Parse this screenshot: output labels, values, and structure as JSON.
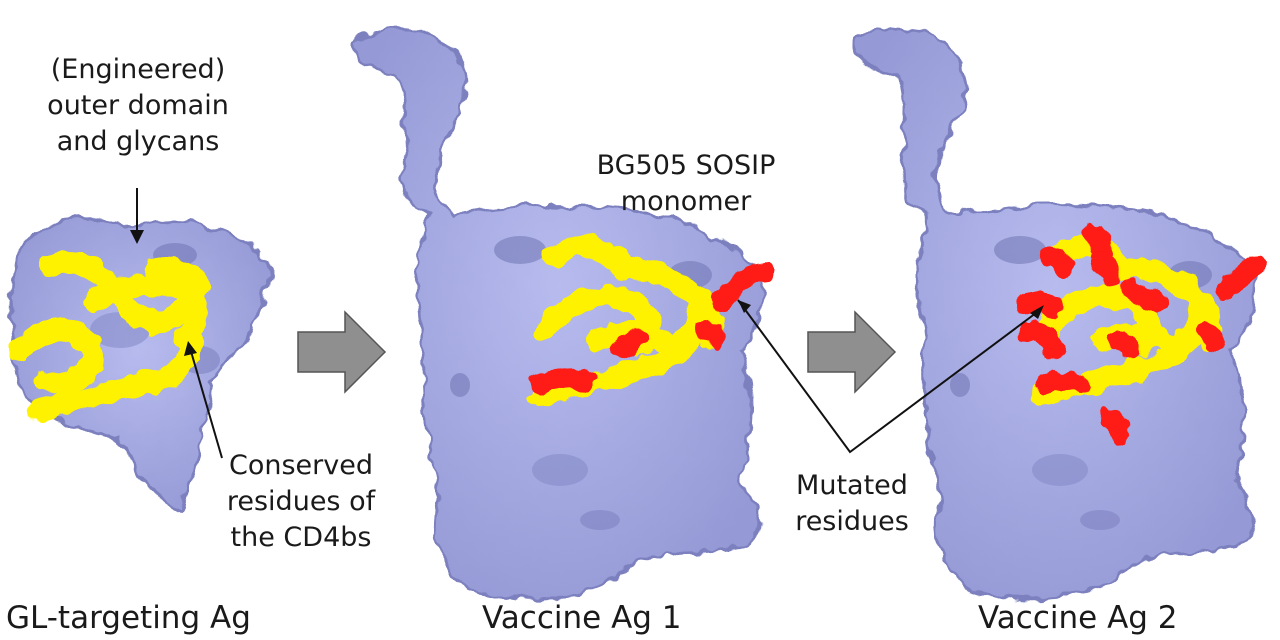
{
  "colors": {
    "protein": "#a9aee6",
    "protein_shadow": "#7b80be",
    "conserved": "#fff200",
    "mutated": "#ff1a12",
    "arrow": "#8e8e8e"
  },
  "panels": [
    {
      "caption": "GL-targeting Ag",
      "icon": "protein-surface-icon"
    },
    {
      "caption": "Vaccine Ag 1",
      "icon": "protein-surface-icon"
    },
    {
      "caption": "Vaccine Ag 2",
      "icon": "protein-surface-icon"
    }
  ],
  "annotations": {
    "outer_domain": [
      "(Engineered)",
      "outer domain",
      "and glycans"
    ],
    "conserved": [
      "Conserved",
      "residues of",
      "the CD4bs"
    ],
    "bg505": [
      "BG505 SOSIP",
      "monomer"
    ],
    "mutated": [
      "Mutated",
      "residues"
    ]
  },
  "icons": [
    "right-arrow-icon",
    "right-arrow-icon"
  ]
}
